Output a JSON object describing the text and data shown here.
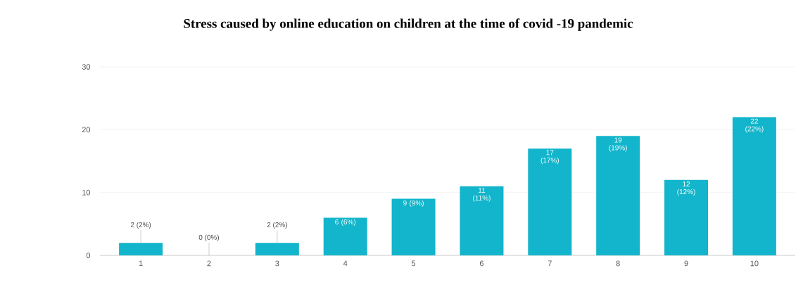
{
  "chart_data": {
    "type": "bar",
    "title": "Stress caused by online education on children at the time of covid -19 pandemic",
    "categories": [
      "1",
      "2",
      "3",
      "4",
      "5",
      "6",
      "7",
      "8",
      "9",
      "10"
    ],
    "values": [
      2,
      0,
      2,
      6,
      9,
      11,
      17,
      19,
      12,
      22
    ],
    "value_labels": [
      "2 (2%)",
      "0 (0%)",
      "2 (2%)",
      "6 (6%)",
      "9 (9%)",
      "11 (11%)",
      "17 (17%)",
      "19 (19%)",
      "12 (12%)",
      "22 (22%)"
    ],
    "color": "#12b5cb",
    "ylim": [
      0,
      30
    ],
    "yticks": [
      0,
      10,
      20,
      30
    ],
    "grid": "y"
  }
}
